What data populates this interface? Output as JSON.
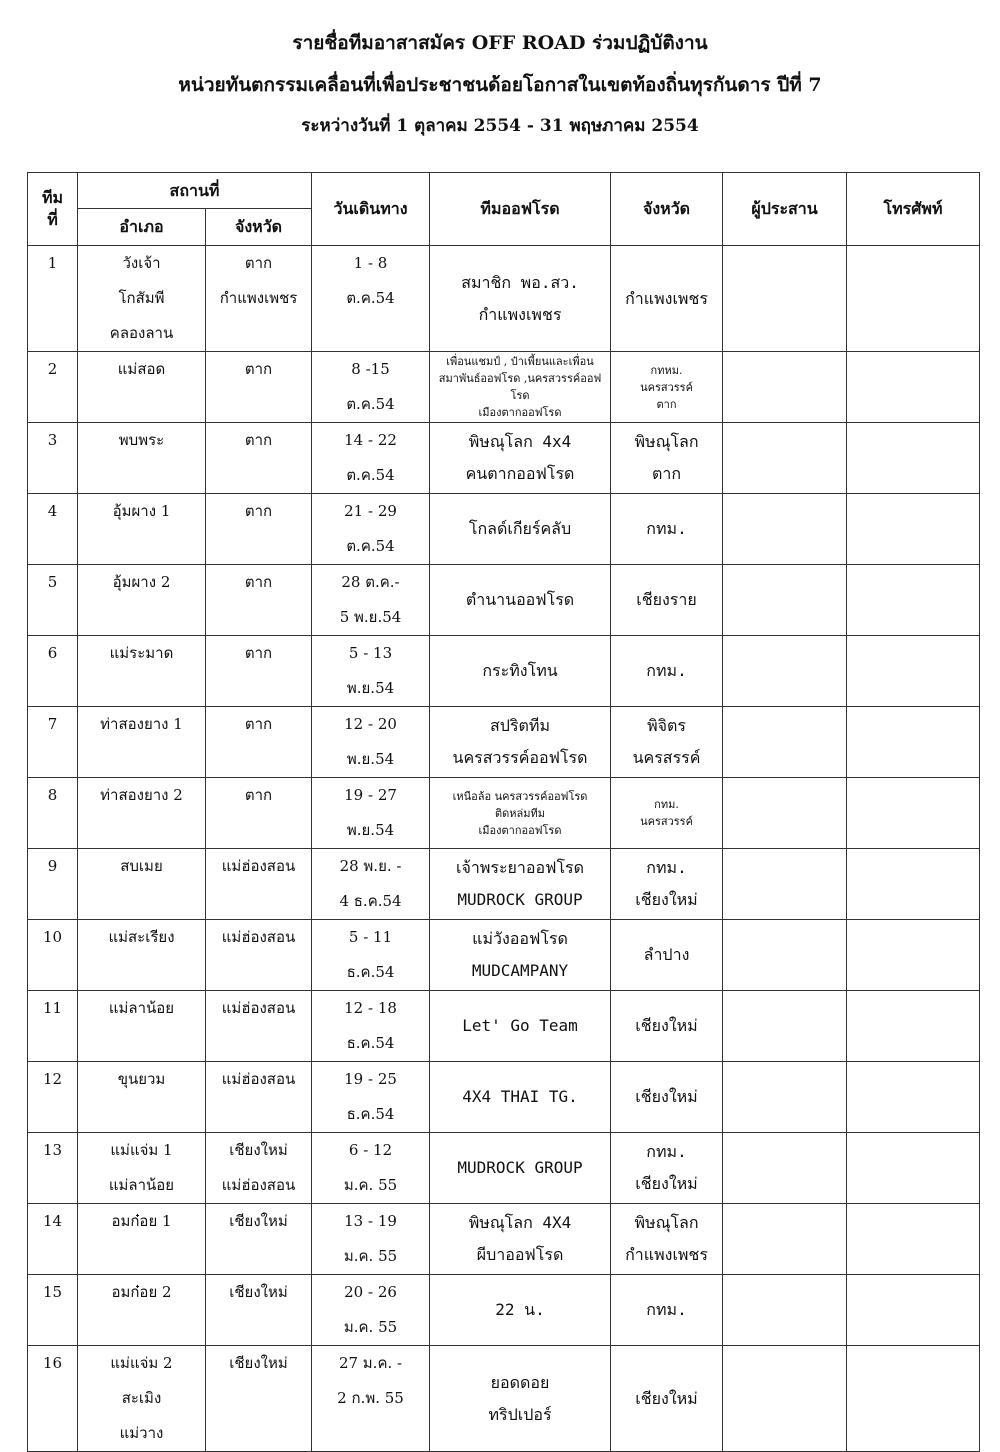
{
  "title_lines": [
    "รายชื่อทีมอาสาสมัคร OFF ROAD ร่วมปฏิบัติงาน",
    "หน่วยทันตกรรมเคลื่อนที่เพื่อประชาชนด้อยโอกาสในเขตท้องถิ่นทุรกันดาร ปีที่ 7",
    "ระหว่างวันที่ 1 ตุลาคม 2554  - 31 พฤษภาคม 2554"
  ],
  "headers": {
    "team_no": "ทีม\nที่",
    "location": "สถานที่",
    "district": "อำเภอ",
    "province": "จังหวัด",
    "travel_date": "วันเดินทาง",
    "offroad_team": "ทีมออฟโรด",
    "team_province": "จังหวัด",
    "coordinator": "ผู้ประสาน",
    "phone": "โทรศัพท์"
  },
  "rows": [
    {
      "no": "1",
      "district": "วังเจ้า\nโกสัมพี\nคลองลาน",
      "province": "ตาก\nกำแพงเพชร",
      "date": "1 - 8\nต.ค.54",
      "team": "สมาชิก พอ.สว.\nกำแพงเพชร",
      "team_province": "กำแพงเพชร",
      "coordinator": "",
      "phone": ""
    },
    {
      "no": "2",
      "district": "แม่สอด",
      "province": "ตาก",
      "date": "8 -15\nต.ค.54",
      "team": "เพื่อนแชมป์ , ป๋าเพี้ยนและเพื่อน\nสมาพันธ์ออฟโรด ,นครสวรรค์ออฟโรด\nเมืองตากออฟโรด",
      "team_province": "กทหม.\nนครสวรรค์\nตาก",
      "coordinator": "",
      "phone": "",
      "small": true
    },
    {
      "no": "3",
      "district": "พบพระ",
      "province": "ตาก",
      "date": "14 - 22\nต.ค.54",
      "team": "พิษณุโลก 4x4\nคนตากออฟโรด",
      "team_province": "พิษณุโลก\nตาก",
      "coordinator": "",
      "phone": ""
    },
    {
      "no": "4",
      "district": "อุ้มผาง 1",
      "province": "ตาก",
      "date": "21 - 29\nต.ค.54",
      "team": "โกลด์เกียร์คลับ",
      "team_province": "กทม.",
      "coordinator": "",
      "phone": ""
    },
    {
      "no": "5",
      "district": "อุ้มผาง 2",
      "province": "ตาก",
      "date": "28 ต.ค.-\n5 พ.ย.54",
      "team": "ตำนานออฟโรด",
      "team_province": "เชียงราย",
      "coordinator": "",
      "phone": ""
    },
    {
      "no": "6",
      "district": "แม่ระมาด",
      "province": "ตาก",
      "date": "5 - 13\nพ.ย.54",
      "team": "กระทิงโทน",
      "team_province": "กทม.",
      "coordinator": "",
      "phone": ""
    },
    {
      "no": "7",
      "district": "ท่าสองยาง 1",
      "province": "ตาก",
      "date": "12 - 20\nพ.ย.54",
      "team": "สปริตทีม\nนครสวรรค์ออฟโรด",
      "team_province": "พิจิตร\nนครสรรค์",
      "coordinator": "",
      "phone": ""
    },
    {
      "no": "8",
      "district": "ท่าสองยาง 2",
      "province": "ตาก",
      "date": "19 - 27\nพ.ย.54",
      "team": "เหนือล้อ นครสวรรค์ออฟโรด\nติดหล่มทีม\nเมืองตากออฟโรด",
      "team_province": "กทม.\nนครสวรรค์",
      "coordinator": "",
      "phone": "",
      "small": true
    },
    {
      "no": "9",
      "district": "สบเมย",
      "province": "แม่ฮ่องสอน",
      "date": "28 พ.ย. -\n4 ธ.ค.54",
      "team": "เจ้าพระยาออฟโรด\nMUDROCK GROUP",
      "team_province": "กทม.\nเชียงใหม่",
      "coordinator": "",
      "phone": ""
    },
    {
      "no": "10",
      "district": "แม่สะเรียง",
      "province": "แม่ฮ่องสอน",
      "date": "5 - 11\nธ.ค.54",
      "team": "แม่วังออฟโรด\nMUDCAMPANY",
      "team_province": "ลำปาง",
      "coordinator": "",
      "phone": ""
    },
    {
      "no": "11",
      "district": "แม่ลาน้อย",
      "province": "แม่ฮ่องสอน",
      "date": "12 - 18\nธ.ค.54",
      "team": "Let' Go Team",
      "team_province": "เชียงใหม่",
      "coordinator": "",
      "phone": ""
    },
    {
      "no": "12",
      "district": "ขุนยวม",
      "province": "แม่ฮ่องสอน",
      "date": "19 - 25\nธ.ค.54",
      "team": "4X4 THAI TG.",
      "team_province": "เชียงใหม่",
      "coordinator": "",
      "phone": ""
    },
    {
      "no": "13",
      "district": "แม่แจ่ม 1\nแม่ลาน้อย",
      "province": "เชียงใหม่\nแม่ฮ่องสอน",
      "date": "6 - 12\nม.ค. 55",
      "team": "MUDROCK GROUP",
      "team_province": "กทม.\nเชียงใหม่",
      "coordinator": "",
      "phone": ""
    },
    {
      "no": "14",
      "district": "อมก๋อย 1",
      "province": "เชียงใหม่",
      "date": "13 - 19\nม.ค. 55",
      "team": "พิษณุโลก 4X4\nผีบาออฟโรด",
      "team_province": "พิษณุโลก\nกำแพงเพชร",
      "coordinator": "",
      "phone": ""
    },
    {
      "no": "15",
      "district": "อมก๋อย 2",
      "province": "เชียงใหม่",
      "date": "20 - 26\nม.ค. 55",
      "team": "22 น.",
      "team_province": "กทม.",
      "coordinator": "",
      "phone": ""
    },
    {
      "no": "16",
      "district": "แม่แจ่ม 2\nสะเมิง\nแม่วาง",
      "province": "เชียงใหม่",
      "date": "27 ม.ค. -\n2 ก.พ. 55",
      "team": "ยอดดอย\nทริปเปอร์",
      "team_province": "เชียงใหม่",
      "coordinator": "",
      "phone": ""
    }
  ]
}
